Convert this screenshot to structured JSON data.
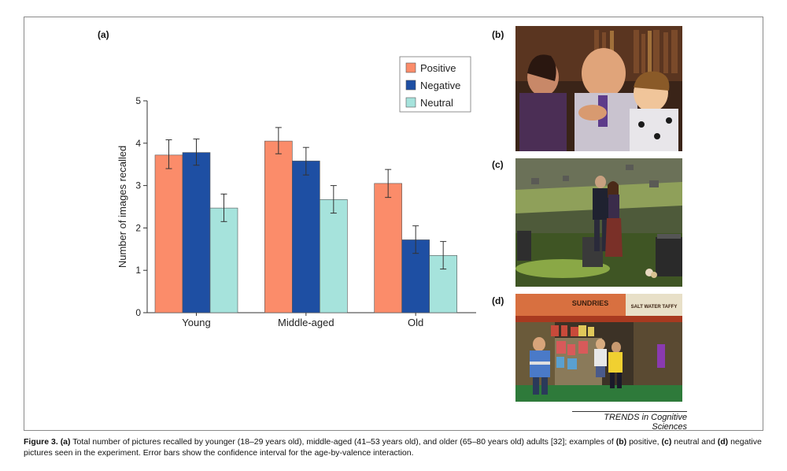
{
  "labels": {
    "a": "(a)",
    "b": "(b)",
    "c": "(c)",
    "d": "(d)"
  },
  "credit": "TRENDS in Cognitive Sciences",
  "caption": {
    "fig": "Figure 3.",
    "a": "(a)",
    "t1": " Total number of pictures recalled by younger (18–29 years old), middle-aged (41–53 years old), and older (65–80 years old) adults [32]; examples of ",
    "b": "(b)",
    "t2": " positive, ",
    "c": "(c)",
    "t3": " neutral and ",
    "d": "(d)",
    "t4": " negative pictures seen in the experiment. Error bars show the confidence interval for the age-by-valence interaction."
  },
  "photo_d_sign": {
    "left": "SUNDRIES",
    "right": "SALT WATER TAFFY"
  },
  "chart_data": {
    "type": "bar",
    "categories": [
      "Young",
      "Middle-aged",
      "Old"
    ],
    "series": [
      {
        "name": "Positive",
        "color": "#fb8c6a",
        "values": [
          3.72,
          4.05,
          3.05
        ],
        "err_low": [
          3.4,
          3.75,
          2.72
        ],
        "err_high": [
          4.08,
          4.37,
          3.38
        ]
      },
      {
        "name": "Negative",
        "color": "#1e4fa3",
        "values": [
          3.78,
          3.58,
          1.72
        ],
        "err_low": [
          3.48,
          3.25,
          1.4
        ],
        "err_high": [
          4.1,
          3.9,
          2.05
        ]
      },
      {
        "name": "Neutral",
        "color": "#a6e3dc",
        "values": [
          2.47,
          2.67,
          1.35
        ],
        "err_low": [
          2.15,
          2.35,
          1.03
        ],
        "err_high": [
          2.8,
          3.0,
          1.68
        ]
      }
    ],
    "ylabel": "Number of images recalled",
    "xlabel": "",
    "ylim": [
      0,
      5
    ],
    "yticks": [
      0,
      1,
      2,
      3,
      4,
      5
    ],
    "legend_position": "top-right",
    "grid": false
  }
}
